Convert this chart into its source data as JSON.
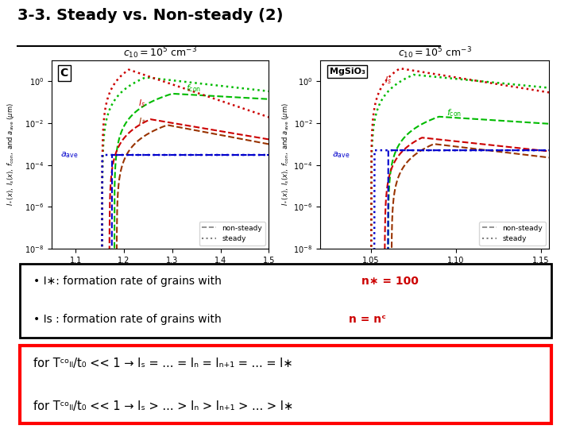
{
  "title": "3-3. Steady vs. Non-steady (2)",
  "background_color": "#ffffff",
  "left_label": "C",
  "right_label": "MgSiO₃",
  "xlabel": "time; x = t/t₀",
  "color_green": "#00bb00",
  "color_red": "#cc0000",
  "color_blue": "#0000cc",
  "color_dark_red": "#993300"
}
